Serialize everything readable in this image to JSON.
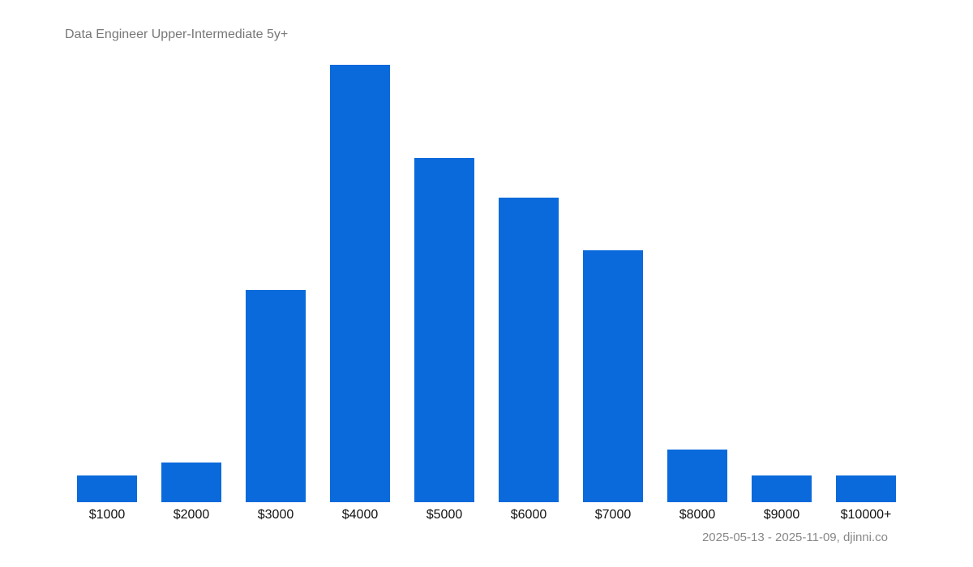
{
  "chart_data": {
    "type": "bar",
    "title": "Data Engineer Upper-Intermediate 5y+",
    "categories": [
      "$1000",
      "$2000",
      "$3000",
      "$4000",
      "$5000",
      "$6000",
      "$7000",
      "$8000",
      "$9000",
      "$10000+"
    ],
    "values": [
      2,
      3,
      16,
      33,
      26,
      23,
      19,
      4,
      2,
      2
    ],
    "xlabel": "",
    "ylabel": "",
    "ylim": [
      0,
      33
    ],
    "grid": false,
    "legend": "none",
    "bar_color": "#0b6adb",
    "footer": "2025-05-13 - 2025-11-09, djinni.co"
  }
}
